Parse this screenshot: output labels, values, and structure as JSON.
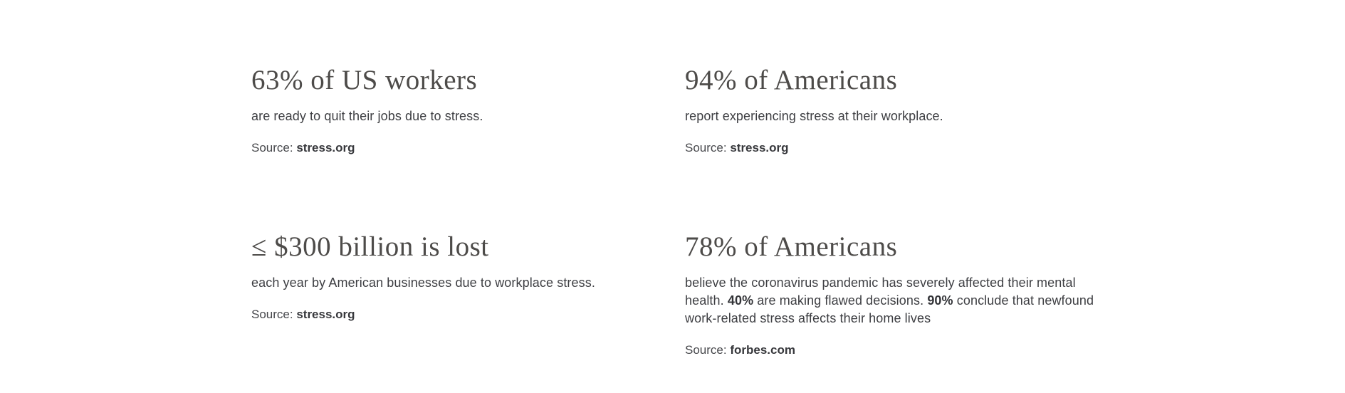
{
  "page": {
    "background_color": "#ffffff",
    "heading_color": "#4d4b49",
    "body_text_color": "#3d3e42"
  },
  "stats": [
    {
      "heading": "63% of US workers",
      "description_segments": [
        {
          "text": "are ready to quit their jobs due to stress.",
          "bold": false
        }
      ],
      "source_label": "Source:",
      "source_name": "stress.org"
    },
    {
      "heading": "94% of Americans",
      "description_segments": [
        {
          "text": "report experiencing stress at their workplace.",
          "bold": false
        }
      ],
      "source_label": "Source:",
      "source_name": "stress.org"
    },
    {
      "heading": "≤ $300 billion is lost",
      "description_segments": [
        {
          "text": "each year by American businesses due to workplace stress.",
          "bold": false
        }
      ],
      "source_label": "Source:",
      "source_name": "stress.org"
    },
    {
      "heading": "78% of Americans",
      "description_segments": [
        {
          "text": "believe the coronavirus pandemic has severely affected their mental health. ",
          "bold": false
        },
        {
          "text": "40%",
          "bold": true
        },
        {
          "text": " are making flawed decisions. ",
          "bold": false
        },
        {
          "text": "90%",
          "bold": true
        },
        {
          "text": " conclude that newfound work-related stress affects their home lives",
          "bold": false
        }
      ],
      "source_label": "Source:",
      "source_name": "forbes.com"
    }
  ]
}
